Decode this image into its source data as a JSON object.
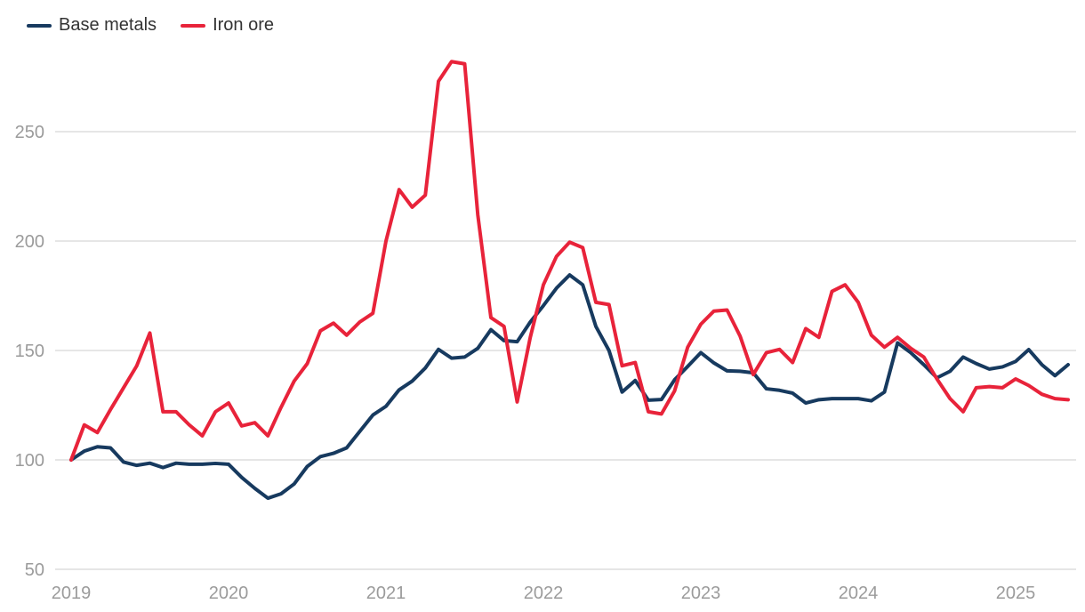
{
  "legend": {
    "position": "top-left",
    "text_color": "#333333"
  },
  "axis": {
    "label_color": "#9b9b9b",
    "grid_color": "#e2e2e2",
    "font_size_px": 20
  },
  "chart_data": {
    "type": "line",
    "title": "",
    "xlabel": "",
    "ylabel": "",
    "x_start": "2019-01",
    "x_frequency": "monthly",
    "x_tick_labels": [
      "2019",
      "2020",
      "2021",
      "2022",
      "2023",
      "2024",
      "2025"
    ],
    "y_ticks": [
      50,
      100,
      150,
      200,
      250
    ],
    "ylim": [
      50,
      290
    ],
    "grid": "horizontal-only",
    "legend_position": "top-left",
    "index_base": 100,
    "series": [
      {
        "name": "Base metals",
        "color": "#173a5f",
        "values": [
          100,
          104,
          106,
          105.5,
          99,
          97.5,
          98.5,
          96.5,
          98.5,
          98,
          98,
          98.4,
          98,
          92,
          87,
          82.5,
          84.5,
          89,
          97,
          101.5,
          103,
          105.5,
          113,
          120.5,
          124.5,
          132,
          136,
          142,
          150.5,
          146.5,
          147,
          151,
          159.5,
          154.5,
          154,
          163,
          170.5,
          178.5,
          184.5,
          180,
          161,
          150,
          131,
          136.3,
          127.3,
          127.6,
          136.6,
          142.7,
          149,
          144.3,
          140.7,
          140.5,
          139.8,
          132.5,
          131.8,
          130.5,
          126,
          127.5,
          128,
          128,
          128,
          127,
          131,
          153.5,
          149,
          143.5,
          137.5,
          140.5,
          147,
          144,
          141.5,
          142.5,
          145,
          150.4,
          143.5,
          138.5,
          143.5
        ]
      },
      {
        "name": "Iron ore",
        "color": "#e8233a",
        "values": [
          100,
          116,
          112.5,
          123,
          133,
          143,
          158,
          122,
          122,
          116,
          111,
          122,
          126,
          115.5,
          117,
          111,
          124,
          136,
          144,
          159,
          162.5,
          157,
          163,
          167,
          200,
          223.5,
          215.5,
          221,
          273,
          282,
          281,
          212,
          165,
          161,
          126.5,
          156,
          180,
          193,
          199.5,
          197,
          172,
          171,
          143,
          144.5,
          122,
          121,
          131.5,
          151.5,
          162,
          168,
          168.5,
          156.5,
          139,
          149,
          150.5,
          144.5,
          160,
          156,
          177,
          180,
          172,
          157,
          151.5,
          156,
          151,
          147,
          137,
          128,
          122,
          133,
          133.5,
          133,
          137,
          134,
          130,
          128,
          127.5
        ]
      }
    ]
  }
}
